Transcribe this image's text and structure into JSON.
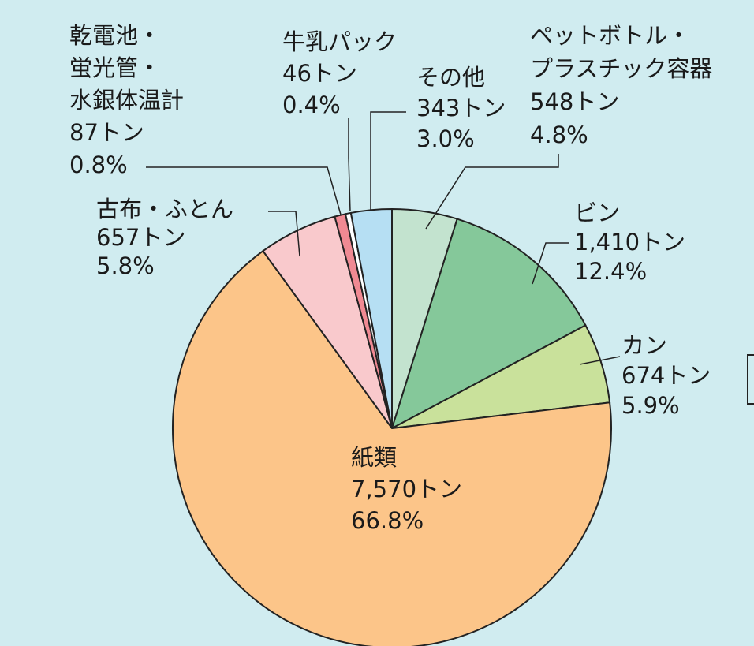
{
  "chart_data": {
    "type": "pie",
    "categories": [
      [
        "ペットボトル・",
        "プラスチック容器"
      ],
      [
        "ビン"
      ],
      [
        "カン"
      ],
      [
        "紙類"
      ],
      [
        "古布・ふとん"
      ],
      [
        "乾電池・",
        "蛍光管・",
        "水銀体温計"
      ],
      [
        "牛乳パック"
      ],
      [
        "その他"
      ]
    ],
    "values": [
      4.8,
      12.4,
      5.9,
      66.8,
      5.8,
      0.8,
      0.4,
      3.0
    ],
    "value_labels": [
      "4.8%",
      "12.4%",
      "5.9%",
      "66.8%",
      "5.8%",
      "0.8%",
      "0.4%",
      "3.0%"
    ],
    "tons": [
      548,
      1410,
      674,
      7570,
      657,
      87,
      46,
      343
    ],
    "tons_labels": [
      "548トン",
      "1,410トン",
      "674トン",
      "7,570トン",
      "657トン",
      "87トン",
      "46トン",
      "343トン"
    ],
    "colors": [
      "#c3e3cf",
      "#85c89a",
      "#c9e19b",
      "#fcc589",
      "#f9c9cc",
      "#f08a93",
      "#ffffff",
      "#b6dff3"
    ]
  }
}
